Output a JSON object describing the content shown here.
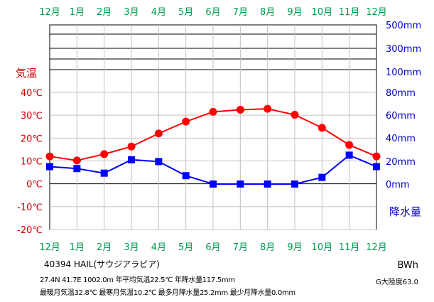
{
  "chart_data": {
    "type": "line",
    "categories": [
      "12月",
      "1月",
      "2月",
      "3月",
      "4月",
      "5月",
      "6月",
      "7月",
      "8月",
      "9月",
      "10月",
      "11月",
      "12月"
    ],
    "series": [
      {
        "name": "気温",
        "axis": "left",
        "unit": "℃",
        "color": "#ff0000",
        "marker": "circle",
        "values": [
          12.0,
          10.2,
          13.0,
          16.3,
          22.0,
          27.2,
          31.5,
          32.4,
          32.8,
          30.2,
          24.5,
          17.0,
          12.0
        ]
      },
      {
        "name": "降水量",
        "axis": "right",
        "unit": "mm",
        "color": "#0000ff",
        "marker": "square",
        "values": [
          15.2,
          13.5,
          9.5,
          21.2,
          19.6,
          7.3,
          0.0,
          0.0,
          0.0,
          0.0,
          5.8,
          25.2,
          15.2
        ]
      }
    ],
    "left_axis": {
      "title": "気温",
      "ticks": [
        "40℃",
        "30℃",
        "20℃",
        "10℃",
        "0℃",
        "-10℃",
        "-20℃"
      ],
      "tick_values": [
        40,
        30,
        20,
        10,
        0,
        -10,
        -20
      ],
      "range": [
        -20,
        40
      ],
      "color": "#cc0000"
    },
    "right_axis": {
      "title": "降水量",
      "ticks": [
        "500mm",
        "300mm",
        "100mm",
        "80mm",
        "60mm",
        "40mm",
        "20mm",
        "0mm"
      ],
      "linear_ticks": [
        "80mm",
        "60mm",
        "40mm",
        "20mm",
        "0mm"
      ],
      "linear_values": [
        80,
        60,
        40,
        20,
        0
      ],
      "range": [
        0,
        80
      ],
      "color": "#0000cc"
    },
    "month_label_color": "#00994d",
    "grid": true
  },
  "info": {
    "station": "40394 HAIL(サウジアラビア)",
    "stats_line1": "27.4N 41.7E 1002.0m 年平均気温22.5℃ 年降水量117.5mm",
    "stats_line2": "最暖月気温32.8℃ 最寒月気温10.2℃ 最多月降水量25.2mm 最少月降水量0.0mm",
    "climate_class": "BWh",
    "continentality": "G大陸度63.0"
  }
}
